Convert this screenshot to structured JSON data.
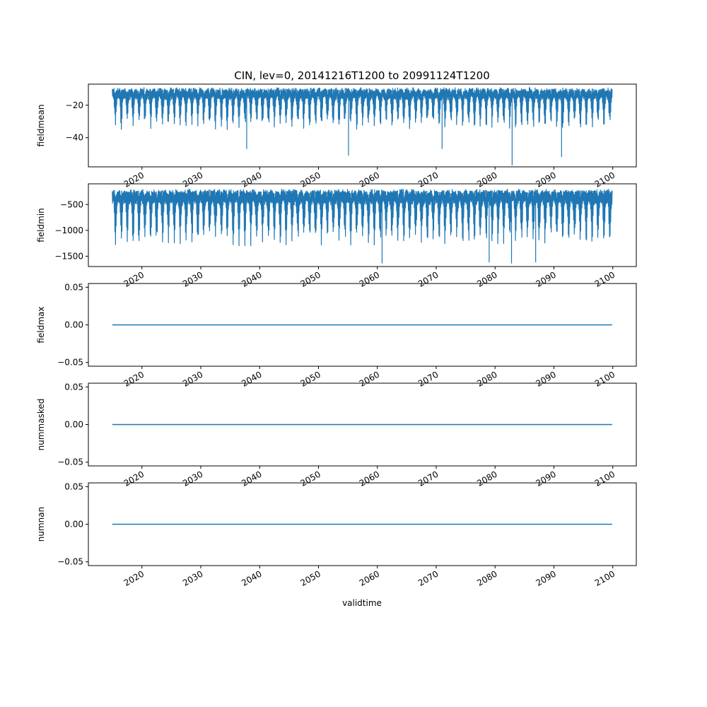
{
  "figure": {
    "title": "CIN, lev=0, 20141216T1200 to 20991124T1200",
    "xlabel": "validtime"
  },
  "colors": {
    "line": "#1f77b4",
    "axes": "#000000",
    "background": "#ffffff"
  },
  "chart_data": [
    {
      "type": "line",
      "ylabel": "fieldmean",
      "xlim": [
        2010.9,
        2104.0
      ],
      "ylim": [
        -58,
        -7
      ],
      "yticks": [
        -40,
        -20
      ],
      "ytick_labels": [
        "−40",
        "−20"
      ],
      "xticks": [
        2020,
        2030,
        2040,
        2050,
        2060,
        2070,
        2080,
        2090,
        2100
      ],
      "xtick_labels": [
        "2020",
        "2030",
        "2040",
        "2050",
        "2060",
        "2070",
        "2080",
        "2090",
        "2100"
      ],
      "series": [
        {
          "x_start": 2014.96,
          "x_end": 2099.9,
          "upper_envelope": [
            -11,
            -9
          ],
          "seasonal_trough_typical": -35,
          "noted_spikes": [
            {
              "x": 2037.8,
              "y": -47
            },
            {
              "x": 2055.1,
              "y": -51
            },
            {
              "x": 2071.0,
              "y": -47
            },
            {
              "x": 2082.9,
              "y": -57
            },
            {
              "x": 2091.3,
              "y": -52
            }
          ]
        }
      ]
    },
    {
      "type": "line",
      "ylabel": "fieldmin",
      "xlim": [
        2010.9,
        2104.0
      ],
      "ylim": [
        -1700,
        -100
      ],
      "yticks": [
        -1500,
        -1000,
        -500
      ],
      "ytick_labels": [
        "−1500",
        "−1000",
        "−500"
      ],
      "xticks": [
        2020,
        2030,
        2040,
        2050,
        2060,
        2070,
        2080,
        2090,
        2100
      ],
      "xtick_labels": [
        "2020",
        "2030",
        "2040",
        "2050",
        "2060",
        "2070",
        "2080",
        "2090",
        "2100"
      ],
      "series": [
        {
          "x_start": 2014.96,
          "x_end": 2099.9,
          "upper_envelope": [
            -250,
            -200
          ],
          "seasonal_trough_typical": -1300,
          "noted_spikes": [
            {
              "x": 2060.8,
              "y": -1640
            },
            {
              "x": 2079.0,
              "y": -1620
            },
            {
              "x": 2082.8,
              "y": -1640
            },
            {
              "x": 2086.9,
              "y": -1620
            }
          ]
        }
      ]
    },
    {
      "type": "line",
      "ylabel": "fieldmax",
      "xlim": [
        2010.9,
        2104.0
      ],
      "ylim": [
        -0.055,
        0.055
      ],
      "yticks": [
        -0.05,
        0.0,
        0.05
      ],
      "ytick_labels": [
        "−0.05",
        "0.00",
        "0.05"
      ],
      "xticks": [
        2020,
        2030,
        2040,
        2050,
        2060,
        2070,
        2080,
        2090,
        2100
      ],
      "xtick_labels": [
        "2020",
        "2030",
        "2040",
        "2050",
        "2060",
        "2070",
        "2080",
        "2090",
        "2100"
      ],
      "series": [
        {
          "x_start": 2014.96,
          "x_end": 2099.9,
          "constant": 0.0
        }
      ]
    },
    {
      "type": "line",
      "ylabel": "nummasked",
      "xlim": [
        2010.9,
        2104.0
      ],
      "ylim": [
        -0.055,
        0.055
      ],
      "yticks": [
        -0.05,
        0.0,
        0.05
      ],
      "ytick_labels": [
        "−0.05",
        "0.00",
        "0.05"
      ],
      "xticks": [
        2020,
        2030,
        2040,
        2050,
        2060,
        2070,
        2080,
        2090,
        2100
      ],
      "xtick_labels": [
        "2020",
        "2030",
        "2040",
        "2050",
        "2060",
        "2070",
        "2080",
        "2090",
        "2100"
      ],
      "series": [
        {
          "x_start": 2014.96,
          "x_end": 2099.9,
          "constant": 0.0
        }
      ]
    },
    {
      "type": "line",
      "ylabel": "numnan",
      "xlim": [
        2010.9,
        2104.0
      ],
      "ylim": [
        -0.055,
        0.055
      ],
      "yticks": [
        -0.05,
        0.0,
        0.05
      ],
      "ytick_labels": [
        "−0.05",
        "0.00",
        "0.05"
      ],
      "xticks": [
        2020,
        2030,
        2040,
        2050,
        2060,
        2070,
        2080,
        2090,
        2100
      ],
      "xtick_labels": [
        "2020",
        "2030",
        "2040",
        "2050",
        "2060",
        "2070",
        "2080",
        "2090",
        "2100"
      ],
      "series": [
        {
          "x_start": 2014.96,
          "x_end": 2099.9,
          "constant": 0.0
        }
      ]
    }
  ]
}
